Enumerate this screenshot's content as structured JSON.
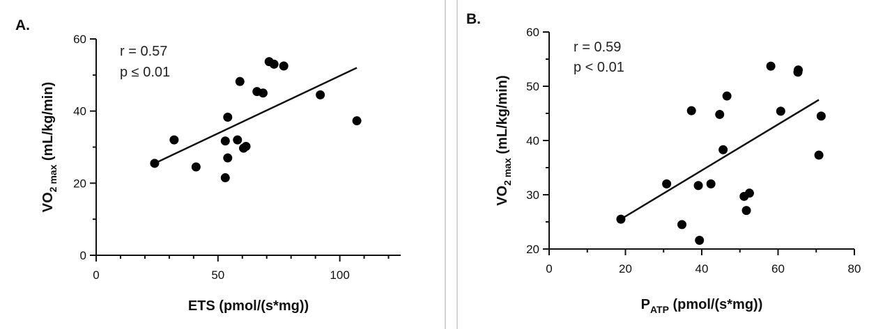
{
  "chart_data": [
    {
      "type": "scatter",
      "panel_label": "A.",
      "xlabel": "ETS (pmol/(s*mg))",
      "ylabel": "VO",
      "ylabel_sub": "2 max",
      "ylabel_suffix": " (mL/kg/min)",
      "xlim": [
        0,
        125
      ],
      "ylim": [
        0,
        60
      ],
      "xticks": [
        0,
        50,
        100
      ],
      "xminorstep": 10,
      "yticks": [
        0,
        20,
        40,
        60
      ],
      "yminorstep": 10,
      "stats": [
        "r = 0.57",
        "p ≤ 0.01"
      ],
      "points": [
        {
          "x": 24,
          "y": 25.5
        },
        {
          "x": 32,
          "y": 32
        },
        {
          "x": 41,
          "y": 24.5
        },
        {
          "x": 53,
          "y": 31.7
        },
        {
          "x": 53,
          "y": 21.5
        },
        {
          "x": 54,
          "y": 38.3
        },
        {
          "x": 54,
          "y": 27
        },
        {
          "x": 58,
          "y": 32
        },
        {
          "x": 59,
          "y": 48.2
        },
        {
          "x": 60.5,
          "y": 29.7
        },
        {
          "x": 61.5,
          "y": 30.2
        },
        {
          "x": 66,
          "y": 45.4
        },
        {
          "x": 68.5,
          "y": 45
        },
        {
          "x": 71,
          "y": 53.7
        },
        {
          "x": 73,
          "y": 53
        },
        {
          "x": 77,
          "y": 52.5
        },
        {
          "x": 92,
          "y": 44.5
        },
        {
          "x": 107,
          "y": 37.3
        }
      ],
      "fit_line": {
        "x": [
          24,
          107
        ],
        "y": [
          25.5,
          52
        ]
      }
    },
    {
      "type": "scatter",
      "panel_label": "B.",
      "xlabel": "P",
      "xlabel_sub": "ATP",
      "xlabel_suffix": " (pmol/(s*mg))",
      "ylabel": "VO",
      "ylabel_sub": "2 max",
      "ylabel_suffix": " (mL/kg/min)",
      "xlim": [
        0,
        80
      ],
      "ylim": [
        20,
        60
      ],
      "xticks": [
        0,
        20,
        40,
        60,
        80
      ],
      "xminorstep": 10,
      "yticks": [
        20,
        30,
        40,
        50,
        60
      ],
      "yminorstep": 5,
      "stats": [
        "r = 0.59",
        "p < 0.01"
      ],
      "points": [
        {
          "x": 18.8,
          "y": 25.5
        },
        {
          "x": 30.8,
          "y": 32
        },
        {
          "x": 34.8,
          "y": 24.5
        },
        {
          "x": 37.3,
          "y": 45.5
        },
        {
          "x": 39.1,
          "y": 31.7
        },
        {
          "x": 39.4,
          "y": 21.6
        },
        {
          "x": 42.4,
          "y": 32
        },
        {
          "x": 44.7,
          "y": 44.8
        },
        {
          "x": 45.6,
          "y": 38.3
        },
        {
          "x": 46.6,
          "y": 48.2
        },
        {
          "x": 51.1,
          "y": 29.7
        },
        {
          "x": 51.7,
          "y": 27.1
        },
        {
          "x": 52.5,
          "y": 30.3
        },
        {
          "x": 58.1,
          "y": 53.7
        },
        {
          "x": 60.7,
          "y": 45.4
        },
        {
          "x": 65.2,
          "y": 52.6
        },
        {
          "x": 65.3,
          "y": 53
        },
        {
          "x": 70.7,
          "y": 37.3
        },
        {
          "x": 71.3,
          "y": 44.5
        }
      ],
      "fit_line": {
        "x": [
          18.8,
          70.7
        ],
        "y": [
          25.5,
          47.5
        ]
      }
    }
  ]
}
